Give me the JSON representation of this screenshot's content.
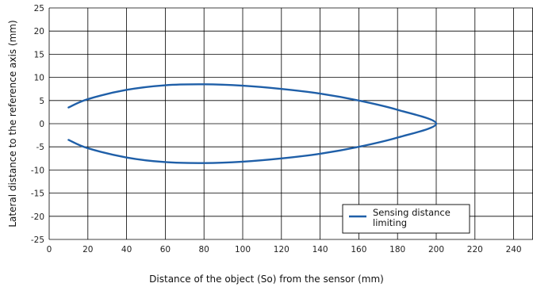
{
  "chart_data": {
    "type": "line",
    "title": "",
    "xlabel": "Distance of the object (So) from the sensor (mm)",
    "ylabel": "Lateral distance to the reference axis (mm)",
    "xlim": [
      0,
      250
    ],
    "ylim": [
      -25,
      25
    ],
    "x_ticks": [
      0,
      20,
      40,
      60,
      80,
      100,
      120,
      140,
      160,
      180,
      200,
      220,
      240
    ],
    "y_ticks": [
      25,
      20,
      15,
      10,
      5,
      0,
      -5,
      -10,
      -15,
      -20,
      -25
    ],
    "grid": true,
    "legend_position": "bottom-right",
    "series": [
      {
        "name": "Sensing distance limiting",
        "color": "#1f5fa8",
        "x": [
          10,
          20,
          40,
          60,
          80,
          100,
          120,
          140,
          160,
          180,
          200,
          180,
          160,
          140,
          120,
          100,
          80,
          60,
          40,
          20,
          10
        ],
        "y": [
          3.5,
          5.3,
          7.3,
          8.3,
          8.5,
          8.2,
          7.5,
          6.5,
          5.0,
          3.0,
          0.0,
          -3.0,
          -5.0,
          -6.5,
          -7.5,
          -8.2,
          -8.5,
          -8.3,
          -7.3,
          -5.3,
          -3.5
        ]
      }
    ]
  }
}
